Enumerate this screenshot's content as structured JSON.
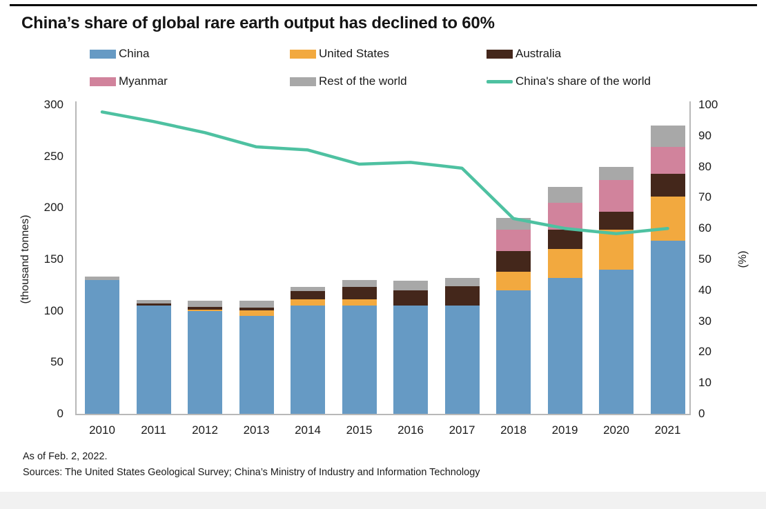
{
  "title": "China’s share of global rare earth output has declined to 60%",
  "legend": {
    "items": [
      {
        "label": "China",
        "kind": "bar",
        "color": "#669AC4"
      },
      {
        "label": "United States",
        "kind": "bar",
        "color": "#F2A93F"
      },
      {
        "label": "Australia",
        "kind": "bar",
        "color": "#44271B"
      },
      {
        "label": "Myanmar",
        "kind": "bar",
        "color": "#D1839C"
      },
      {
        "label": "Rest of the world",
        "kind": "bar",
        "color": "#A8A8A8"
      },
      {
        "label": "China's share of the world",
        "kind": "line",
        "color": "#4EC1A1"
      }
    ]
  },
  "axes": {
    "left_label": "(thousand tonnes)",
    "right_label": "(%)"
  },
  "chart_data": {
    "type": "bar",
    "subtype": "stacked-bar-with-line",
    "title": "China’s share of global rare earth output has declined to 60%",
    "categories": [
      "2010",
      "2011",
      "2012",
      "2013",
      "2014",
      "2015",
      "2016",
      "2017",
      "2018",
      "2019",
      "2020",
      "2021"
    ],
    "ylabel_left": "(thousand tonnes)",
    "ylabel_right": "(%)",
    "ylim_left": [
      0,
      300
    ],
    "ylim_right": [
      0,
      100
    ],
    "yticks_left": [
      0,
      50,
      100,
      150,
      200,
      250,
      300
    ],
    "yticks_right": [
      0,
      10,
      20,
      30,
      40,
      50,
      60,
      70,
      80,
      90,
      100
    ],
    "grid": false,
    "legend_position": "top",
    "series": [
      {
        "name": "China",
        "type": "bar",
        "axis": "left",
        "color": "#669AC4",
        "values": [
          130,
          105,
          100,
          95,
          105,
          105,
          105,
          105,
          120,
          132,
          140,
          168
        ]
      },
      {
        "name": "United States",
        "type": "bar",
        "axis": "left",
        "color": "#F2A93F",
        "values": [
          0,
          0,
          0.8,
          5.5,
          6,
          6,
          0,
          0,
          18,
          28,
          39,
          43
        ]
      },
      {
        "name": "Australia",
        "type": "bar",
        "axis": "left",
        "color": "#44271B",
        "values": [
          0,
          2.2,
          3.2,
          2.5,
          8,
          12,
          15,
          19,
          20,
          19,
          17,
          22
        ]
      },
      {
        "name": "Myanmar",
        "type": "bar",
        "axis": "left",
        "color": "#D1839C",
        "values": [
          0,
          0,
          0,
          0,
          0,
          0,
          0,
          0,
          21,
          26,
          31,
          26
        ]
      },
      {
        "name": "Rest of the world",
        "type": "bar",
        "axis": "left",
        "color": "#A8A8A8",
        "values": [
          3,
          3.5,
          6,
          7,
          4,
          7,
          9,
          8,
          11,
          15,
          13,
          21
        ]
      },
      {
        "name": "China's share of the world",
        "type": "line",
        "axis": "right",
        "color": "#4EC1A1",
        "values": [
          97.7,
          94.6,
          91,
          86.4,
          85.4,
          80.8,
          81.4,
          79.5,
          63.2,
          60,
          58.3,
          60
        ]
      }
    ]
  },
  "footer": {
    "as_of": "As of Feb. 2, 2022.",
    "sources": "Sources: The United States Geological Survey; China’s Ministry of Industry and Information Technology"
  }
}
